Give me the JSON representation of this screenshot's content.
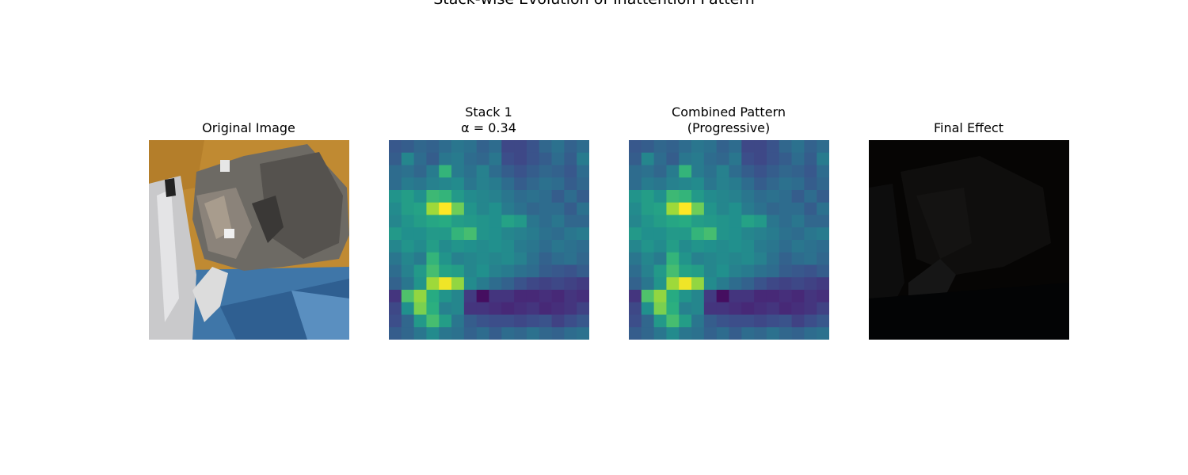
{
  "title": "Stack-wise Evolution of Inattention Pattern",
  "chart_data": [
    {
      "type": "image",
      "title": "Original Image",
      "image": "CIFAR-10 style 32x32 photo: cat on blue fabric against orange background"
    },
    {
      "type": "heatmap",
      "title_line1": "Stack 1",
      "title_line2": "α = 0.34",
      "colormap": "viridis",
      "grid": [
        16,
        16
      ],
      "values": [
        [
          0.28,
          0.3,
          0.34,
          0.32,
          0.36,
          0.4,
          0.38,
          0.32,
          0.36,
          0.22,
          0.22,
          0.26,
          0.34,
          0.38,
          0.32,
          0.36
        ],
        [
          0.3,
          0.46,
          0.36,
          0.3,
          0.4,
          0.42,
          0.36,
          0.34,
          0.4,
          0.24,
          0.22,
          0.26,
          0.3,
          0.36,
          0.3,
          0.42
        ],
        [
          0.36,
          0.38,
          0.34,
          0.42,
          0.66,
          0.42,
          0.38,
          0.44,
          0.36,
          0.3,
          0.26,
          0.3,
          0.34,
          0.32,
          0.28,
          0.36
        ],
        [
          0.36,
          0.42,
          0.4,
          0.44,
          0.46,
          0.48,
          0.4,
          0.44,
          0.42,
          0.36,
          0.3,
          0.34,
          0.38,
          0.36,
          0.3,
          0.34
        ],
        [
          0.52,
          0.56,
          0.5,
          0.68,
          0.66,
          0.54,
          0.48,
          0.46,
          0.44,
          0.4,
          0.36,
          0.38,
          0.36,
          0.3,
          0.36,
          0.3
        ],
        [
          0.48,
          0.56,
          0.58,
          0.86,
          1.0,
          0.78,
          0.52,
          0.46,
          0.5,
          0.42,
          0.38,
          0.34,
          0.36,
          0.36,
          0.3,
          0.38
        ],
        [
          0.46,
          0.52,
          0.56,
          0.6,
          0.62,
          0.56,
          0.54,
          0.52,
          0.5,
          0.58,
          0.54,
          0.4,
          0.36,
          0.4,
          0.34,
          0.34
        ],
        [
          0.54,
          0.5,
          0.5,
          0.54,
          0.54,
          0.66,
          0.7,
          0.52,
          0.5,
          0.46,
          0.44,
          0.42,
          0.38,
          0.36,
          0.4,
          0.42
        ],
        [
          0.46,
          0.52,
          0.48,
          0.56,
          0.48,
          0.52,
          0.5,
          0.48,
          0.5,
          0.48,
          0.42,
          0.4,
          0.36,
          0.4,
          0.38,
          0.36
        ],
        [
          0.4,
          0.46,
          0.42,
          0.66,
          0.52,
          0.44,
          0.46,
          0.48,
          0.46,
          0.48,
          0.44,
          0.38,
          0.32,
          0.36,
          0.38,
          0.34
        ],
        [
          0.36,
          0.44,
          0.54,
          0.7,
          0.58,
          0.56,
          0.46,
          0.5,
          0.44,
          0.42,
          0.38,
          0.36,
          0.3,
          0.28,
          0.26,
          0.3
        ],
        [
          0.32,
          0.4,
          0.52,
          0.86,
          0.98,
          0.84,
          0.48,
          0.42,
          0.36,
          0.32,
          0.26,
          0.22,
          0.2,
          0.22,
          0.2,
          0.18
        ],
        [
          0.16,
          0.72,
          0.84,
          0.62,
          0.52,
          0.46,
          0.18,
          0.04,
          0.16,
          0.16,
          0.12,
          0.12,
          0.14,
          0.12,
          0.16,
          0.14
        ],
        [
          0.22,
          0.5,
          0.8,
          0.64,
          0.44,
          0.46,
          0.16,
          0.16,
          0.14,
          0.12,
          0.14,
          0.16,
          0.12,
          0.14,
          0.16,
          0.2
        ],
        [
          0.24,
          0.34,
          0.54,
          0.7,
          0.56,
          0.4,
          0.3,
          0.26,
          0.24,
          0.24,
          0.22,
          0.24,
          0.26,
          0.2,
          0.24,
          0.28
        ],
        [
          0.3,
          0.34,
          0.4,
          0.48,
          0.4,
          0.38,
          0.32,
          0.36,
          0.3,
          0.36,
          0.34,
          0.38,
          0.34,
          0.32,
          0.36,
          0.38
        ]
      ]
    },
    {
      "type": "heatmap",
      "title_line1": "Combined Pattern",
      "title_line2": "(Progressive)",
      "colormap": "viridis",
      "grid": [
        16,
        16
      ],
      "same_values_as": "Stack 1"
    },
    {
      "type": "image",
      "title": "Final Effect",
      "image": "dark, near-black version of the original image"
    }
  ]
}
